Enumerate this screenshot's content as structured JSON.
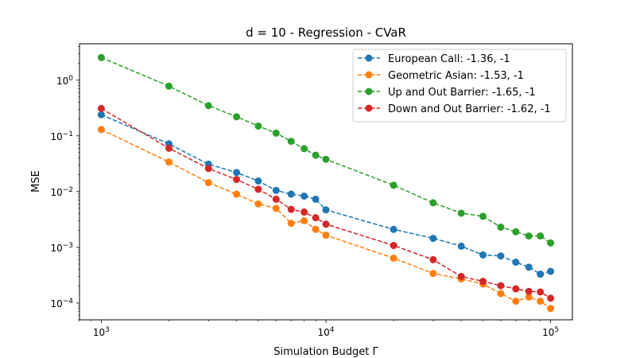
{
  "chart_data": {
    "type": "line",
    "title": "d = 10 - Regression - CVaR",
    "xlabel": "Simulation Budget Γ",
    "ylabel": "MSE",
    "xscale": "log",
    "yscale": "log",
    "xlim": [
      800,
      125000
    ],
    "ylim": [
      5e-05,
      4.5
    ],
    "grid": false,
    "legend_position": "top-right",
    "x_tick_labels": [
      {
        "value": 1000,
        "base": "10",
        "exp": "3"
      },
      {
        "value": 10000,
        "base": "10",
        "exp": "4"
      },
      {
        "value": 100000,
        "base": "10",
        "exp": "5"
      }
    ],
    "y_tick_labels": [
      {
        "value": 0.0001,
        "base": "10",
        "exp": "−4"
      },
      {
        "value": 0.001,
        "base": "10",
        "exp": "−3"
      },
      {
        "value": 0.01,
        "base": "10",
        "exp": "−2"
      },
      {
        "value": 0.1,
        "base": "10",
        "exp": "−1"
      },
      {
        "value": 1,
        "base": "10",
        "exp": "0"
      }
    ],
    "x": [
      1000,
      2000,
      3000,
      4000,
      5000,
      6000,
      7000,
      8000,
      9000,
      10000,
      20000,
      30000,
      40000,
      50000,
      60000,
      70000,
      80000,
      90000,
      100000
    ],
    "series": [
      {
        "name": "European Call: -1.36, -1",
        "color": "#1f77b4",
        "values": [
          0.24,
          0.072,
          0.031,
          0.022,
          0.0155,
          0.0105,
          0.009,
          0.0083,
          0.0073,
          0.0047,
          0.0021,
          0.00145,
          0.00105,
          0.00073,
          0.0007,
          0.00054,
          0.00044,
          0.00033,
          0.00037
        ]
      },
      {
        "name": "Geometric Asian: -1.53, -1",
        "color": "#ff7f0e",
        "values": [
          0.13,
          0.034,
          0.0145,
          0.009,
          0.006,
          0.005,
          0.0027,
          0.003,
          0.0021,
          0.00165,
          0.00064,
          0.00034,
          0.00027,
          0.00022,
          0.000148,
          0.000108,
          0.000128,
          0.000108,
          8e-05
        ]
      },
      {
        "name": "Up and Out Barrier: -1.65, -1",
        "color": "#2ca02c",
        "values": [
          2.55,
          0.78,
          0.35,
          0.22,
          0.15,
          0.112,
          0.08,
          0.059,
          0.045,
          0.038,
          0.013,
          0.0063,
          0.0041,
          0.0036,
          0.0023,
          0.0019,
          0.0016,
          0.0016,
          0.0012
        ]
      },
      {
        "name": "Down and Out Barrier: -1.62, -1",
        "color": "#d62728",
        "values": [
          0.31,
          0.06,
          0.026,
          0.0165,
          0.011,
          0.0073,
          0.0048,
          0.0043,
          0.0034,
          0.0026,
          0.00108,
          0.0006,
          0.0003,
          0.000245,
          0.000205,
          0.00018,
          0.000162,
          0.000158,
          0.000122
        ]
      }
    ]
  }
}
